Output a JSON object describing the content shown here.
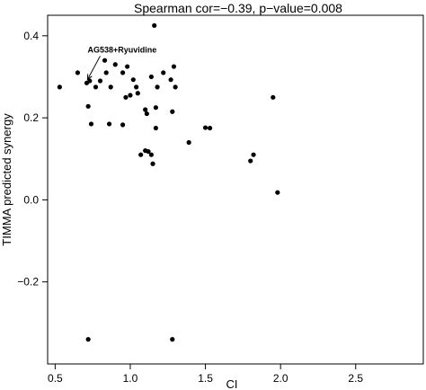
{
  "chart_data": {
    "type": "scatter",
    "title": "Spearman cor=−0.39, p−value=0.008",
    "xlabel": "CI",
    "ylabel": "TIMMA predicted synergy",
    "xlim": [
      0.45,
      2.95
    ],
    "ylim": [
      -0.4,
      0.45
    ],
    "xticks": [
      "0.5",
      "1.0",
      "1.5",
      "2.0",
      "2.5"
    ],
    "yticks": [
      "−0.2",
      "0.0",
      "0.2",
      "0.4"
    ],
    "grid": false,
    "legend": "none",
    "point_color": "#000000",
    "annotation": {
      "text": "AG538+Ryuvidine",
      "point": [
        0.71,
        0.285
      ]
    },
    "points": [
      [
        0.53,
        0.275
      ],
      [
        0.65,
        0.31
      ],
      [
        0.71,
        0.285
      ],
      [
        0.73,
        0.29
      ],
      [
        0.72,
        0.228
      ],
      [
        0.74,
        0.185
      ],
      [
        0.77,
        0.275
      ],
      [
        0.8,
        0.29
      ],
      [
        0.83,
        0.34
      ],
      [
        0.84,
        0.31
      ],
      [
        0.87,
        0.275
      ],
      [
        0.86,
        0.185
      ],
      [
        0.9,
        0.33
      ],
      [
        0.95,
        0.31
      ],
      [
        0.95,
        0.183
      ],
      [
        0.97,
        0.25
      ],
      [
        0.98,
        0.325
      ],
      [
        1.0,
        0.255
      ],
      [
        1.02,
        0.293
      ],
      [
        1.04,
        0.275
      ],
      [
        1.05,
        0.26
      ],
      [
        1.07,
        0.11
      ],
      [
        1.1,
        0.12
      ],
      [
        1.1,
        0.22
      ],
      [
        1.11,
        0.21
      ],
      [
        1.12,
        0.118
      ],
      [
        1.14,
        0.3
      ],
      [
        1.15,
        0.088
      ],
      [
        1.14,
        0.11
      ],
      [
        1.16,
        0.425
      ],
      [
        1.17,
        0.225
      ],
      [
        1.17,
        0.175
      ],
      [
        1.18,
        0.275
      ],
      [
        1.22,
        0.31
      ],
      [
        1.27,
        0.293
      ],
      [
        1.28,
        0.215
      ],
      [
        1.29,
        0.325
      ],
      [
        1.3,
        0.275
      ],
      [
        1.39,
        0.14
      ],
      [
        1.5,
        0.176
      ],
      [
        1.53,
        0.175
      ],
      [
        1.8,
        0.095
      ],
      [
        1.82,
        0.11
      ],
      [
        1.95,
        0.25
      ],
      [
        1.98,
        0.018
      ],
      [
        0.72,
        -0.34
      ],
      [
        1.28,
        -0.34
      ]
    ]
  }
}
